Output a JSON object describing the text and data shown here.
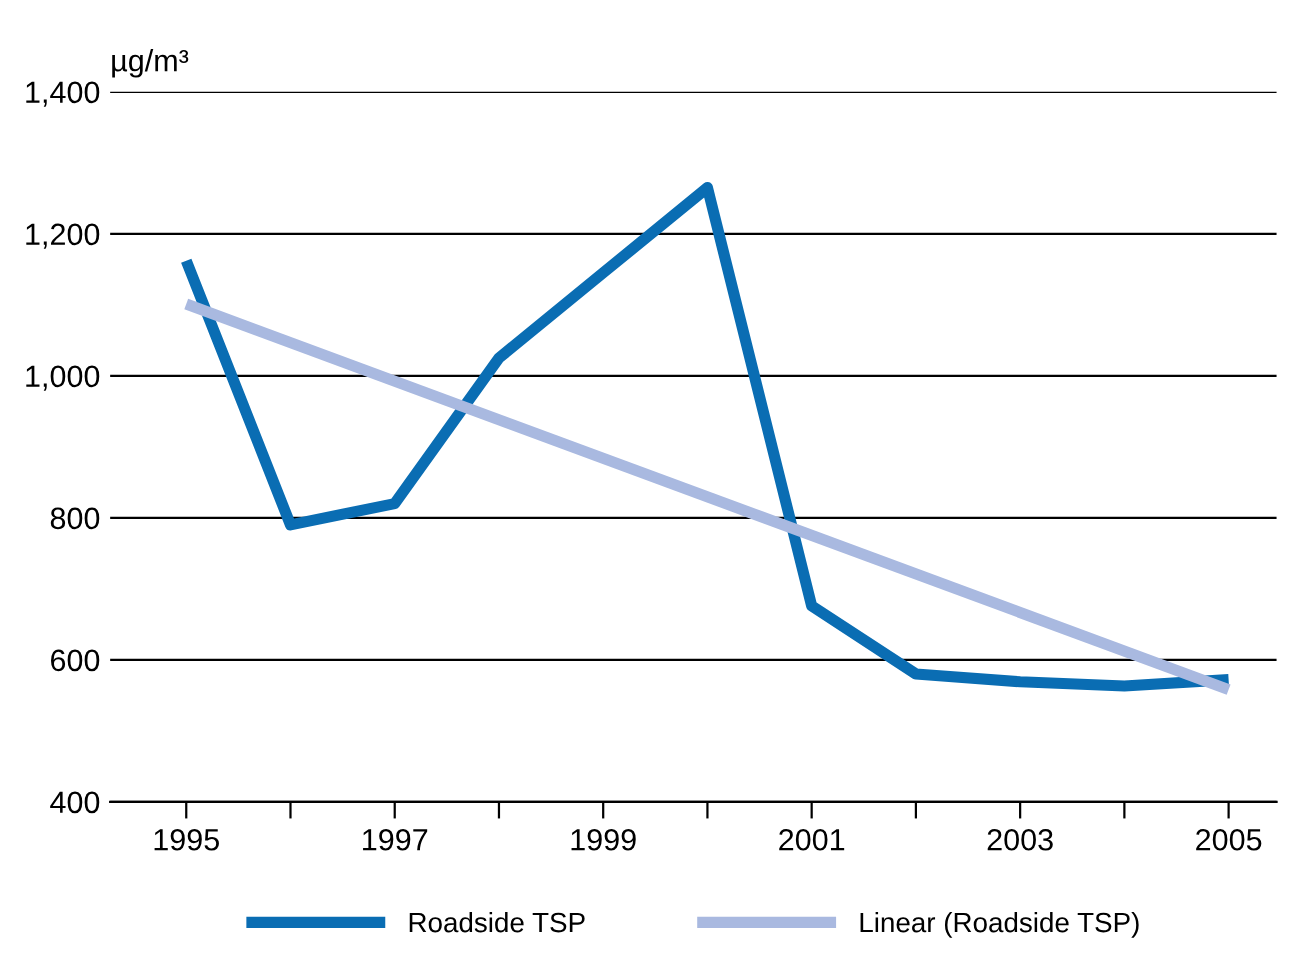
{
  "chart_data": {
    "type": "line",
    "ylabel": "µg/m³",
    "x": [
      1995,
      1996,
      1997,
      1998,
      1999,
      2000,
      2001,
      2002,
      2003,
      2004,
      2005
    ],
    "series": [
      {
        "name": "Roadside TSP",
        "color": "#0a6db3",
        "values": [
          1162,
          790,
          820,
          1025,
          1145,
          1265,
          676,
          580,
          569,
          563,
          572
        ]
      },
      {
        "name": "Linear (Roadside TSP)",
        "color": "#a9b9e0",
        "x": [
          1995,
          2005
        ],
        "values": [
          1101,
          558
        ]
      }
    ],
    "xlim": [
      1994.27,
      2005.46
    ],
    "xticks": [
      1995,
      {
        "value": 1996,
        "label": null
      },
      1997,
      {
        "value": 1998,
        "label": null
      },
      1999,
      {
        "value": 2000,
        "label": null
      },
      2001,
      {
        "value": 2002,
        "label": null
      },
      2003,
      {
        "value": 2004,
        "label": null
      },
      2005
    ],
    "ylim": [
      400,
      1400
    ],
    "yticks": [
      {
        "value": 400,
        "label": "400"
      },
      {
        "value": 600,
        "label": "600"
      },
      {
        "value": 800,
        "label": "800"
      },
      {
        "value": 1000,
        "label": "1,000"
      },
      {
        "value": 1200,
        "label": "1,200"
      },
      {
        "value": 1400,
        "label": "1,400"
      }
    ],
    "grid": "y",
    "legend": "bottom",
    "marker": "none",
    "line_style": "solid"
  }
}
